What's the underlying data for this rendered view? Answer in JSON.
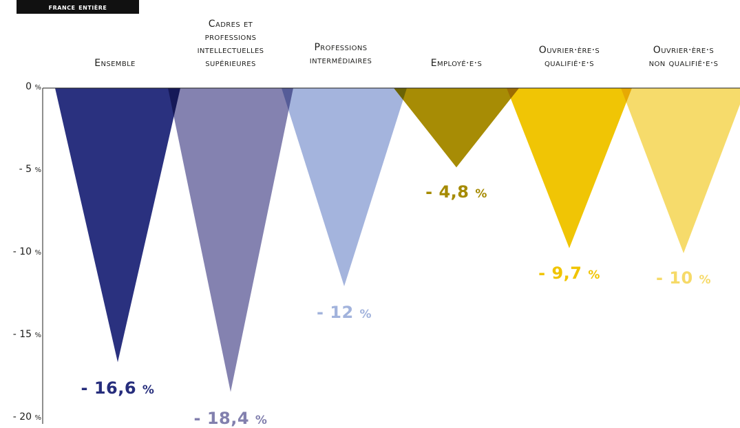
{
  "badge": "France entière",
  "chart_data": {
    "type": "bar",
    "title": "",
    "xlabel": "",
    "ylabel": "",
    "ylim": [
      -20,
      0
    ],
    "yticks": [
      0,
      -5,
      -10,
      -15,
      -20
    ],
    "ytick_labels": [
      "0",
      "- 5",
      "- 10",
      "- 15",
      "- 20"
    ],
    "tick_unit": "%",
    "categories": [
      "Ensemble",
      "Cadres et professions intellectuelles supérieures",
      "Professions intermédiaires",
      "Employé·e·s",
      "Ouvrier·ère·s qualifié·e·s",
      "Ouvrier·ère·s non qualifié·e·s"
    ],
    "values": [
      -16.6,
      -18.4,
      -12,
      -4.8,
      -9.7,
      -10
    ],
    "value_labels": [
      "- 16,6",
      "- 18,4",
      "- 12",
      "- 4,8",
      "- 9,7",
      "- 10"
    ],
    "value_unit": "%",
    "colors": [
      "#262d7c",
      "#8280ae",
      "#a2b3dc",
      "#a58a00",
      "#f0c400",
      "#f6da68"
    ],
    "grid": false
  }
}
